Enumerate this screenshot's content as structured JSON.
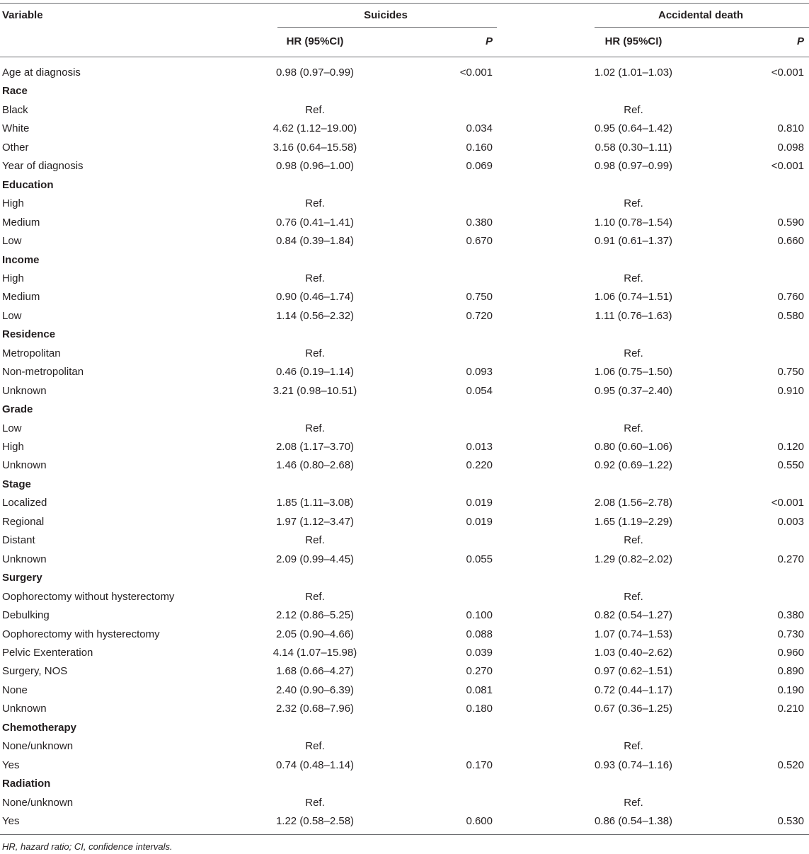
{
  "header": {
    "variable": "Variable",
    "group1": "Suicides",
    "group2": "Accidental death",
    "hr1": "HR (95%CI)",
    "p1": "P",
    "hr2": "HR (95%CI)",
    "p2": "P"
  },
  "rows": [
    {
      "label": "Age at diagnosis",
      "group": false,
      "hr1": "0.98 (0.97–0.99)",
      "p1": "<0.001",
      "hr2": "1.02 (1.01–1.03)",
      "p2": "<0.001"
    },
    {
      "label": "Race",
      "group": true,
      "hr1": "",
      "p1": "",
      "hr2": "",
      "p2": ""
    },
    {
      "label": "Black",
      "group": false,
      "hr1": "Ref.",
      "p1": "",
      "hr2": "Ref.",
      "p2": ""
    },
    {
      "label": "White",
      "group": false,
      "hr1": "4.62 (1.12–19.00)",
      "p1": "0.034",
      "hr2": "0.95 (0.64–1.42)",
      "p2": "0.810"
    },
    {
      "label": "Other",
      "group": false,
      "hr1": "3.16 (0.64–15.58)",
      "p1": "0.160",
      "hr2": "0.58 (0.30–1.11)",
      "p2": "0.098"
    },
    {
      "label": "Year of diagnosis",
      "group": false,
      "hr1": "0.98 (0.96–1.00)",
      "p1": "0.069",
      "hr2": "0.98 (0.97–0.99)",
      "p2": "<0.001"
    },
    {
      "label": "Education",
      "group": true,
      "hr1": "",
      "p1": "",
      "hr2": "",
      "p2": ""
    },
    {
      "label": "High",
      "group": false,
      "hr1": "Ref.",
      "p1": "",
      "hr2": "Ref.",
      "p2": ""
    },
    {
      "label": "Medium",
      "group": false,
      "hr1": "0.76 (0.41–1.41)",
      "p1": "0.380",
      "hr2": "1.10 (0.78–1.54)",
      "p2": "0.590"
    },
    {
      "label": "Low",
      "group": false,
      "hr1": "0.84 (0.39–1.84)",
      "p1": "0.670",
      "hr2": "0.91 (0.61–1.37)",
      "p2": "0.660"
    },
    {
      "label": "Income",
      "group": true,
      "hr1": "",
      "p1": "",
      "hr2": "",
      "p2": ""
    },
    {
      "label": "High",
      "group": false,
      "hr1": "Ref.",
      "p1": "",
      "hr2": "Ref.",
      "p2": ""
    },
    {
      "label": "Medium",
      "group": false,
      "hr1": "0.90 (0.46–1.74)",
      "p1": "0.750",
      "hr2": "1.06 (0.74–1.51)",
      "p2": "0.760"
    },
    {
      "label": "Low",
      "group": false,
      "hr1": "1.14 (0.56–2.32)",
      "p1": "0.720",
      "hr2": "1.11 (0.76–1.63)",
      "p2": "0.580"
    },
    {
      "label": "Residence",
      "group": true,
      "hr1": "",
      "p1": "",
      "hr2": "",
      "p2": ""
    },
    {
      "label": "Metropolitan",
      "group": false,
      "hr1": "Ref.",
      "p1": "",
      "hr2": "Ref.",
      "p2": ""
    },
    {
      "label": "Non-metropolitan",
      "group": false,
      "hr1": "0.46 (0.19–1.14)",
      "p1": "0.093",
      "hr2": "1.06 (0.75–1.50)",
      "p2": "0.750"
    },
    {
      "label": "Unknown",
      "group": false,
      "hr1": "3.21 (0.98–10.51)",
      "p1": "0.054",
      "hr2": "0.95 (0.37–2.40)",
      "p2": "0.910"
    },
    {
      "label": "Grade",
      "group": true,
      "hr1": "",
      "p1": "",
      "hr2": "",
      "p2": ""
    },
    {
      "label": "Low",
      "group": false,
      "hr1": "Ref.",
      "p1": "",
      "hr2": "Ref.",
      "p2": ""
    },
    {
      "label": "High",
      "group": false,
      "hr1": "2.08 (1.17–3.70)",
      "p1": "0.013",
      "hr2": "0.80 (0.60–1.06)",
      "p2": "0.120"
    },
    {
      "label": "Unknown",
      "group": false,
      "hr1": "1.46 (0.80–2.68)",
      "p1": "0.220",
      "hr2": "0.92 (0.69–1.22)",
      "p2": "0.550"
    },
    {
      "label": "Stage",
      "group": true,
      "hr1": "",
      "p1": "",
      "hr2": "",
      "p2": ""
    },
    {
      "label": "Localized",
      "group": false,
      "hr1": "1.85 (1.11–3.08)",
      "p1": "0.019",
      "hr2": "2.08 (1.56–2.78)",
      "p2": "<0.001"
    },
    {
      "label": "Regional",
      "group": false,
      "hr1": "1.97 (1.12–3.47)",
      "p1": "0.019",
      "hr2": "1.65 (1.19–2.29)",
      "p2": "0.003"
    },
    {
      "label": "Distant",
      "group": false,
      "hr1": "Ref.",
      "p1": "",
      "hr2": "Ref.",
      "p2": ""
    },
    {
      "label": "Unknown",
      "group": false,
      "hr1": "2.09 (0.99–4.45)",
      "p1": "0.055",
      "hr2": "1.29 (0.82–2.02)",
      "p2": "0.270"
    },
    {
      "label": "Surgery",
      "group": true,
      "hr1": "",
      "p1": "",
      "hr2": "",
      "p2": ""
    },
    {
      "label": "Oophorectomy without hysterectomy",
      "group": false,
      "hr1": "Ref.",
      "p1": "",
      "hr2": "Ref.",
      "p2": ""
    },
    {
      "label": "Debulking",
      "group": false,
      "hr1": "2.12 (0.86–5.25)",
      "p1": "0.100",
      "hr2": "0.82 (0.54–1.27)",
      "p2": "0.380"
    },
    {
      "label": "Oophorectomy with hysterectomy",
      "group": false,
      "hr1": "2.05 (0.90–4.66)",
      "p1": "0.088",
      "hr2": "1.07 (0.74–1.53)",
      "p2": "0.730"
    },
    {
      "label": "Pelvic Exenteration",
      "group": false,
      "hr1": "4.14 (1.07–15.98)",
      "p1": "0.039",
      "hr2": "1.03 (0.40–2.62)",
      "p2": "0.960"
    },
    {
      "label": "Surgery, NOS",
      "group": false,
      "hr1": "1.68 (0.66–4.27)",
      "p1": "0.270",
      "hr2": "0.97 (0.62–1.51)",
      "p2": "0.890"
    },
    {
      "label": "None",
      "group": false,
      "hr1": "2.40 (0.90–6.39)",
      "p1": "0.081",
      "hr2": "0.72 (0.44–1.17)",
      "p2": "0.190"
    },
    {
      "label": "Unknown",
      "group": false,
      "hr1": "2.32 (0.68–7.96)",
      "p1": "0.180",
      "hr2": "0.67 (0.36–1.25)",
      "p2": "0.210"
    },
    {
      "label": "Chemotherapy",
      "group": true,
      "hr1": "",
      "p1": "",
      "hr2": "",
      "p2": ""
    },
    {
      "label": "None/unknown",
      "group": false,
      "hr1": "Ref.",
      "p1": "",
      "hr2": "Ref.",
      "p2": ""
    },
    {
      "label": "Yes",
      "group": false,
      "hr1": "0.74 (0.48–1.14)",
      "p1": "0.170",
      "hr2": "0.93 (0.74–1.16)",
      "p2": "0.520"
    },
    {
      "label": "Radiation",
      "group": true,
      "hr1": "",
      "p1": "",
      "hr2": "",
      "p2": ""
    },
    {
      "label": "None/unknown",
      "group": false,
      "hr1": "Ref.",
      "p1": "",
      "hr2": "Ref.",
      "p2": ""
    },
    {
      "label": "Yes",
      "group": false,
      "hr1": "1.22 (0.58–2.58)",
      "p1": "0.600",
      "hr2": "0.86 (0.54–1.38)",
      "p2": "0.530"
    }
  ],
  "footnote": "HR, hazard ratio; CI, confidence intervals."
}
